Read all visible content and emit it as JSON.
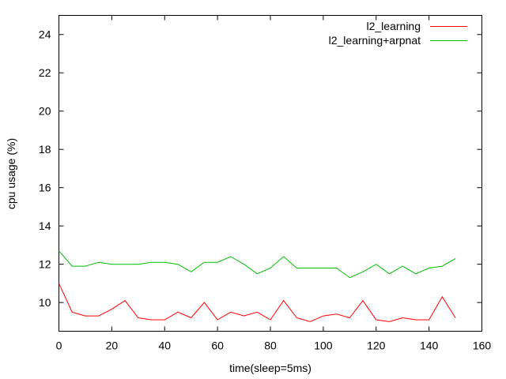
{
  "chart_data": {
    "type": "line",
    "xlabel": "time(sleep=5ms)",
    "ylabel": "cpu usage (%)",
    "xlim": [
      0,
      160
    ],
    "ylim": [
      8.5,
      25
    ],
    "xticks": [
      "0",
      "20",
      "40",
      "60",
      "80",
      "100",
      "120",
      "140",
      "160"
    ],
    "yticks": [
      "10",
      "12",
      "14",
      "16",
      "18",
      "20",
      "22",
      "24"
    ],
    "grid": false,
    "legend_position": "top-right",
    "x": [
      0,
      5,
      10,
      15,
      20,
      25,
      30,
      35,
      40,
      45,
      50,
      55,
      60,
      65,
      70,
      75,
      80,
      85,
      90,
      95,
      100,
      105,
      110,
      115,
      120,
      125,
      130,
      135,
      140,
      145,
      150
    ],
    "series": [
      {
        "name": "l2_learning",
        "color": "#ff0000",
        "values": [
          11.0,
          9.5,
          9.3,
          9.3,
          9.65,
          10.1,
          9.2,
          9.1,
          9.1,
          9.5,
          9.2,
          10.0,
          9.1,
          9.5,
          9.3,
          9.5,
          9.1,
          10.1,
          9.2,
          9.0,
          9.3,
          9.4,
          9.2,
          10.1,
          9.1,
          9.0,
          9.2,
          9.1,
          9.1,
          10.3,
          9.2
        ]
      },
      {
        "name": "l2_learning+arpnat",
        "color": "#00c000",
        "values": [
          12.7,
          11.9,
          11.9,
          12.1,
          12.0,
          12.0,
          12.0,
          12.1,
          12.1,
          12.0,
          11.6,
          12.1,
          12.1,
          12.4,
          12.0,
          11.5,
          11.8,
          12.4,
          11.8,
          11.8,
          11.8,
          11.8,
          11.3,
          11.6,
          12.0,
          11.5,
          11.9,
          11.5,
          11.8,
          11.9,
          12.3
        ]
      }
    ]
  }
}
